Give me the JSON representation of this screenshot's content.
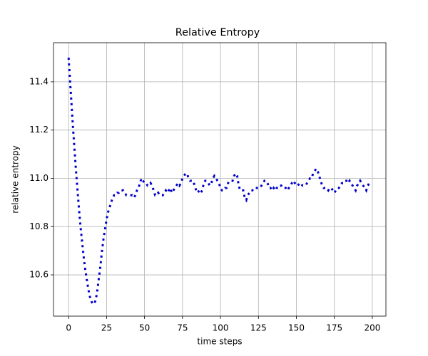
{
  "chart_data": {
    "type": "line",
    "title": "Relative Entropy",
    "xlabel": "time steps",
    "ylabel": "relative entropy",
    "x": [
      0,
      1,
      2,
      3,
      4,
      5,
      6,
      7,
      8,
      9,
      10,
      11,
      12,
      13,
      14,
      15,
      16,
      17,
      18,
      19,
      20,
      21,
      22,
      23,
      24,
      25,
      26,
      27,
      28,
      29,
      30,
      31,
      32,
      33,
      34,
      35,
      36,
      37,
      38,
      39,
      40,
      41,
      42,
      43,
      44,
      45,
      46,
      47,
      48,
      49,
      50,
      51,
      52,
      53,
      54,
      55,
      56,
      57,
      58,
      59,
      60,
      61,
      62,
      63,
      64,
      65,
      66,
      67,
      68,
      69,
      70,
      71,
      72,
      73,
      74,
      75,
      76,
      77,
      78,
      79,
      80,
      81,
      82,
      83,
      84,
      85,
      86,
      87,
      88,
      89,
      90,
      91,
      92,
      93,
      94,
      95,
      96,
      97,
      98,
      99,
      100,
      101,
      102,
      103,
      104,
      105,
      106,
      107,
      108,
      109,
      110,
      111,
      112,
      113,
      114,
      115,
      116,
      117,
      118,
      119,
      120,
      121,
      122,
      123,
      124,
      125,
      126,
      127,
      128,
      129,
      130,
      131,
      132,
      133,
      134,
      135,
      136,
      137,
      138,
      139,
      140,
      141,
      142,
      143,
      144,
      145,
      146,
      147,
      148,
      149,
      150,
      151,
      152,
      153,
      154,
      155,
      156,
      157,
      158,
      159,
      160,
      161,
      162,
      163,
      164,
      165,
      166,
      167,
      168,
      169,
      170,
      171,
      172,
      173,
      174,
      175,
      176,
      177,
      178,
      179,
      180,
      181,
      182,
      183,
      184,
      185,
      186,
      187,
      188,
      189,
      190,
      191,
      192,
      193,
      194,
      195,
      196,
      197,
      198,
      199
    ],
    "values": [
      11.5,
      11.4,
      11.3,
      11.2,
      11.11,
      11.02,
      10.94,
      10.86,
      10.79,
      10.73,
      10.67,
      10.62,
      10.58,
      10.54,
      10.51,
      10.49,
      10.48,
      10.48,
      10.5,
      10.54,
      10.59,
      10.64,
      10.7,
      10.75,
      10.79,
      10.83,
      10.86,
      10.88,
      10.9,
      10.92,
      10.93,
      10.93,
      10.94,
      10.94,
      10.95,
      10.95,
      10.95,
      10.94,
      10.93,
      10.93,
      10.93,
      10.93,
      10.93,
      10.92,
      10.93,
      10.95,
      10.96,
      10.98,
      11.0,
      10.99,
      10.98,
      10.98,
      10.97,
      10.97,
      10.98,
      10.97,
      10.95,
      10.93,
      10.93,
      10.94,
      10.93,
      10.93,
      10.93,
      10.94,
      10.95,
      10.94,
      10.95,
      10.96,
      10.94,
      10.95,
      10.96,
      10.97,
      10.98,
      10.97,
      10.98,
      11.0,
      11.01,
      11.02,
      11.02,
      11.0,
      10.99,
      10.99,
      10.99,
      10.97,
      10.95,
      10.94,
      10.95,
      10.94,
      10.95,
      10.98,
      10.99,
      10.99,
      10.98,
      10.97,
      10.98,
      11.0,
      11.01,
      11.0,
      10.99,
      10.98,
      10.96,
      10.95,
      10.95,
      10.96,
      10.96,
      10.98,
      10.99,
      10.99,
      10.99,
      11.01,
      11.02,
      11.01,
      10.97,
      10.95,
      10.95,
      10.95,
      10.92,
      10.91,
      10.93,
      10.94,
      10.95,
      10.95,
      10.96,
      10.96,
      10.96,
      10.96,
      10.96,
      10.97,
      10.98,
      10.99,
      10.99,
      10.98,
      10.96,
      10.96,
      10.95,
      10.96,
      10.95,
      10.96,
      10.96,
      10.97,
      10.97,
      10.96,
      10.96,
      10.96,
      10.95,
      10.96,
      10.97,
      10.98,
      10.99,
      10.98,
      10.97,
      10.97,
      10.98,
      10.98,
      10.97,
      10.97,
      10.97,
      10.98,
      10.99,
      11.0,
      11.0,
      11.02,
      11.03,
      11.04,
      11.03,
      11.01,
      10.99,
      10.97,
      10.96,
      10.96,
      10.96,
      10.95,
      10.96,
      10.96,
      10.95,
      10.94,
      10.95,
      10.96,
      10.96,
      10.97,
      10.98,
      10.98,
      10.99,
      10.99,
      10.98,
      10.99,
      10.98,
      10.97,
      10.96,
      10.95,
      10.97,
      10.98,
      10.99,
      10.98,
      10.97,
      10.96,
      10.95,
      10.97,
      10.98,
      10.99
    ],
    "color": "#0000cc",
    "line_style": "dotted",
    "xlim": [
      -9.95,
      208.95
    ],
    "ylim": [
      10.429,
      11.562
    ],
    "xticks": [
      0,
      25,
      50,
      75,
      100,
      125,
      150,
      175,
      200
    ],
    "yticks": [
      10.6,
      10.8,
      {
        "value": 11,
        "label": "11.0"
      },
      11.2,
      11.4
    ],
    "grid": true
  }
}
